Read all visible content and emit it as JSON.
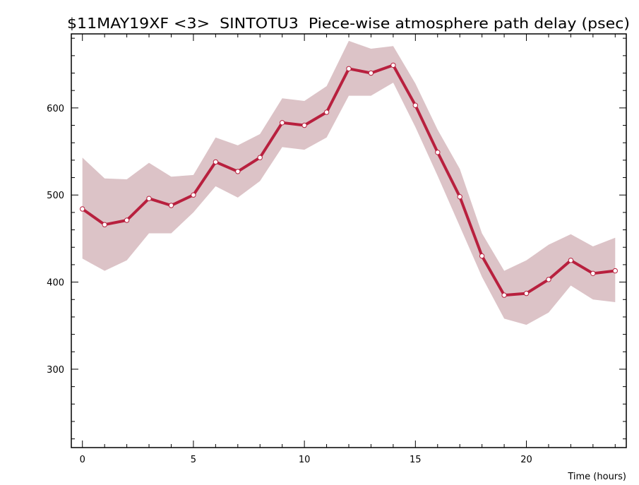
{
  "chart_data": {
    "type": "line",
    "title": "$11MAY19XF <3>  SINTOTU3  Piece-wise atmosphere path delay (psec)",
    "xlabel": "Time (hours)",
    "ylabel": "",
    "xlim": [
      -0.5,
      24.5
    ],
    "ylim": [
      210,
      685
    ],
    "x_ticks": [
      0,
      5,
      10,
      15,
      20
    ],
    "x_minor_step": 1,
    "y_ticks": [
      300,
      400,
      500,
      600
    ],
    "y_minor_step": 20,
    "grid": false,
    "legend": "none",
    "colors": {
      "line": "#b8203e",
      "band": "#dcc3c7",
      "marker_fill": "#ffffff"
    },
    "series": [
      {
        "x": [
          0,
          1,
          2,
          3,
          4,
          5,
          6,
          7,
          8,
          9,
          10,
          11,
          12,
          13,
          14,
          15,
          16,
          17,
          18,
          19,
          20,
          21,
          22,
          23,
          24
        ],
        "values": [
          484,
          466,
          471,
          496,
          488,
          500,
          538,
          527,
          543,
          583,
          580,
          595,
          645,
          640,
          649,
          603,
          549,
          498,
          430,
          385,
          387,
          403,
          425,
          410,
          413
        ],
        "upper": [
          543,
          519,
          518,
          537,
          521,
          523,
          566,
          557,
          570,
          611,
          608,
          625,
          677,
          668,
          671,
          628,
          575,
          530,
          456,
          413,
          425,
          443,
          455,
          441,
          451
        ],
        "lower": [
          427,
          413,
          425,
          456,
          456,
          480,
          510,
          497,
          516,
          555,
          552,
          566,
          614,
          614,
          629,
          578,
          522,
          464,
          406,
          358,
          351,
          365,
          396,
          380,
          377
        ]
      }
    ]
  }
}
